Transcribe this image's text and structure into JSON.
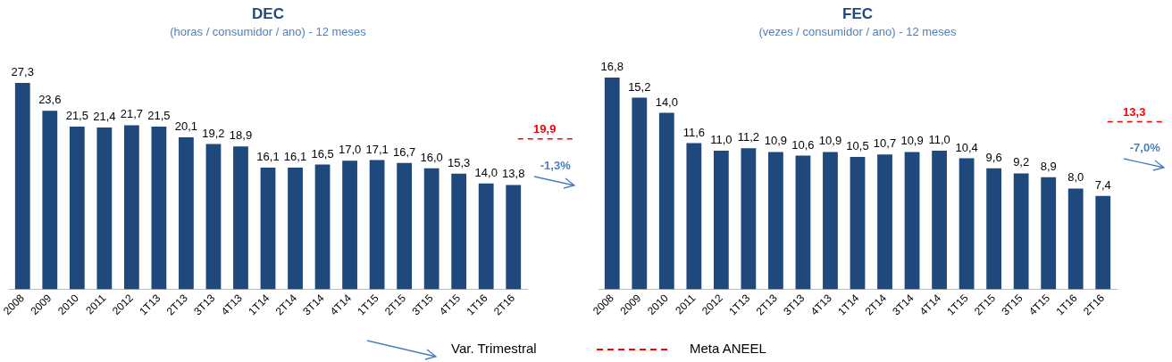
{
  "chart_data": [
    {
      "type": "bar",
      "title": "DEC",
      "subtitle": "(horas / consumidor / ano) - 12 meses",
      "categories": [
        "2008",
        "2009",
        "2010",
        "2011",
        "2012",
        "1T13",
        "2T13",
        "3T13",
        "4T13",
        "1T14",
        "2T14",
        "3T14",
        "4T14",
        "1T15",
        "2T15",
        "3T15",
        "4T15",
        "1T16",
        "2T16"
      ],
      "values": [
        27.3,
        23.6,
        21.5,
        21.4,
        21.7,
        21.5,
        20.1,
        19.2,
        18.9,
        16.1,
        16.1,
        16.5,
        17.0,
        17.1,
        16.7,
        16.0,
        15.3,
        14.0,
        13.8
      ],
      "value_labels": [
        "27,3",
        "23,6",
        "21,5",
        "21,4",
        "21,7",
        "21,5",
        "20,1",
        "19,2",
        "18,9",
        "16,1",
        "16,1",
        "16,5",
        "17,0",
        "17,1",
        "16,7",
        "16,0",
        "15,3",
        "14,0",
        "13,8"
      ],
      "color": "#1f497d",
      "ref_lines": [
        {
          "axis": "y",
          "value": 19.9,
          "label": "19,9",
          "color": "#ff0000",
          "line_style": "dashed"
        }
      ],
      "annotations": [
        "-1,3%",
        "Var. Trimestral",
        "Meta ANEEL"
      ],
      "tick_labels": "x",
      "grid": false,
      "legend": false
    },
    {
      "type": "bar",
      "title": "FEC",
      "subtitle": "(vezes / consumidor / ano) - 12 meses",
      "categories": [
        "2008",
        "2009",
        "2010",
        "2011",
        "2012",
        "1T13",
        "2T13",
        "3T13",
        "4T13",
        "1T14",
        "2T14",
        "3T14",
        "4T14",
        "1T15",
        "2T15",
        "3T15",
        "4T15",
        "1T16",
        "2T16"
      ],
      "values": [
        16.8,
        15.2,
        14.0,
        11.6,
        11.0,
        11.2,
        10.9,
        10.6,
        10.9,
        10.5,
        10.7,
        10.9,
        11.0,
        10.4,
        9.6,
        9.2,
        8.9,
        8.0,
        7.4
      ],
      "value_labels": [
        "16,8",
        "15,2",
        "14,0",
        "11,6",
        "11,0",
        "11,2",
        "10,9",
        "10,6",
        "10,9",
        "10,5",
        "10,7",
        "10,9",
        "11,0",
        "10,4",
        "9,6",
        "9,2",
        "8,9",
        "8,0",
        "7,4"
      ],
      "color": "#1f497d",
      "ref_lines": [
        {
          "axis": "y",
          "value": 13.3,
          "label": "13,3",
          "color": "#ff0000",
          "line_style": "dashed"
        }
      ],
      "annotations": [
        "-7,0%"
      ],
      "tick_labels": "x",
      "grid": false,
      "legend": false
    }
  ]
}
